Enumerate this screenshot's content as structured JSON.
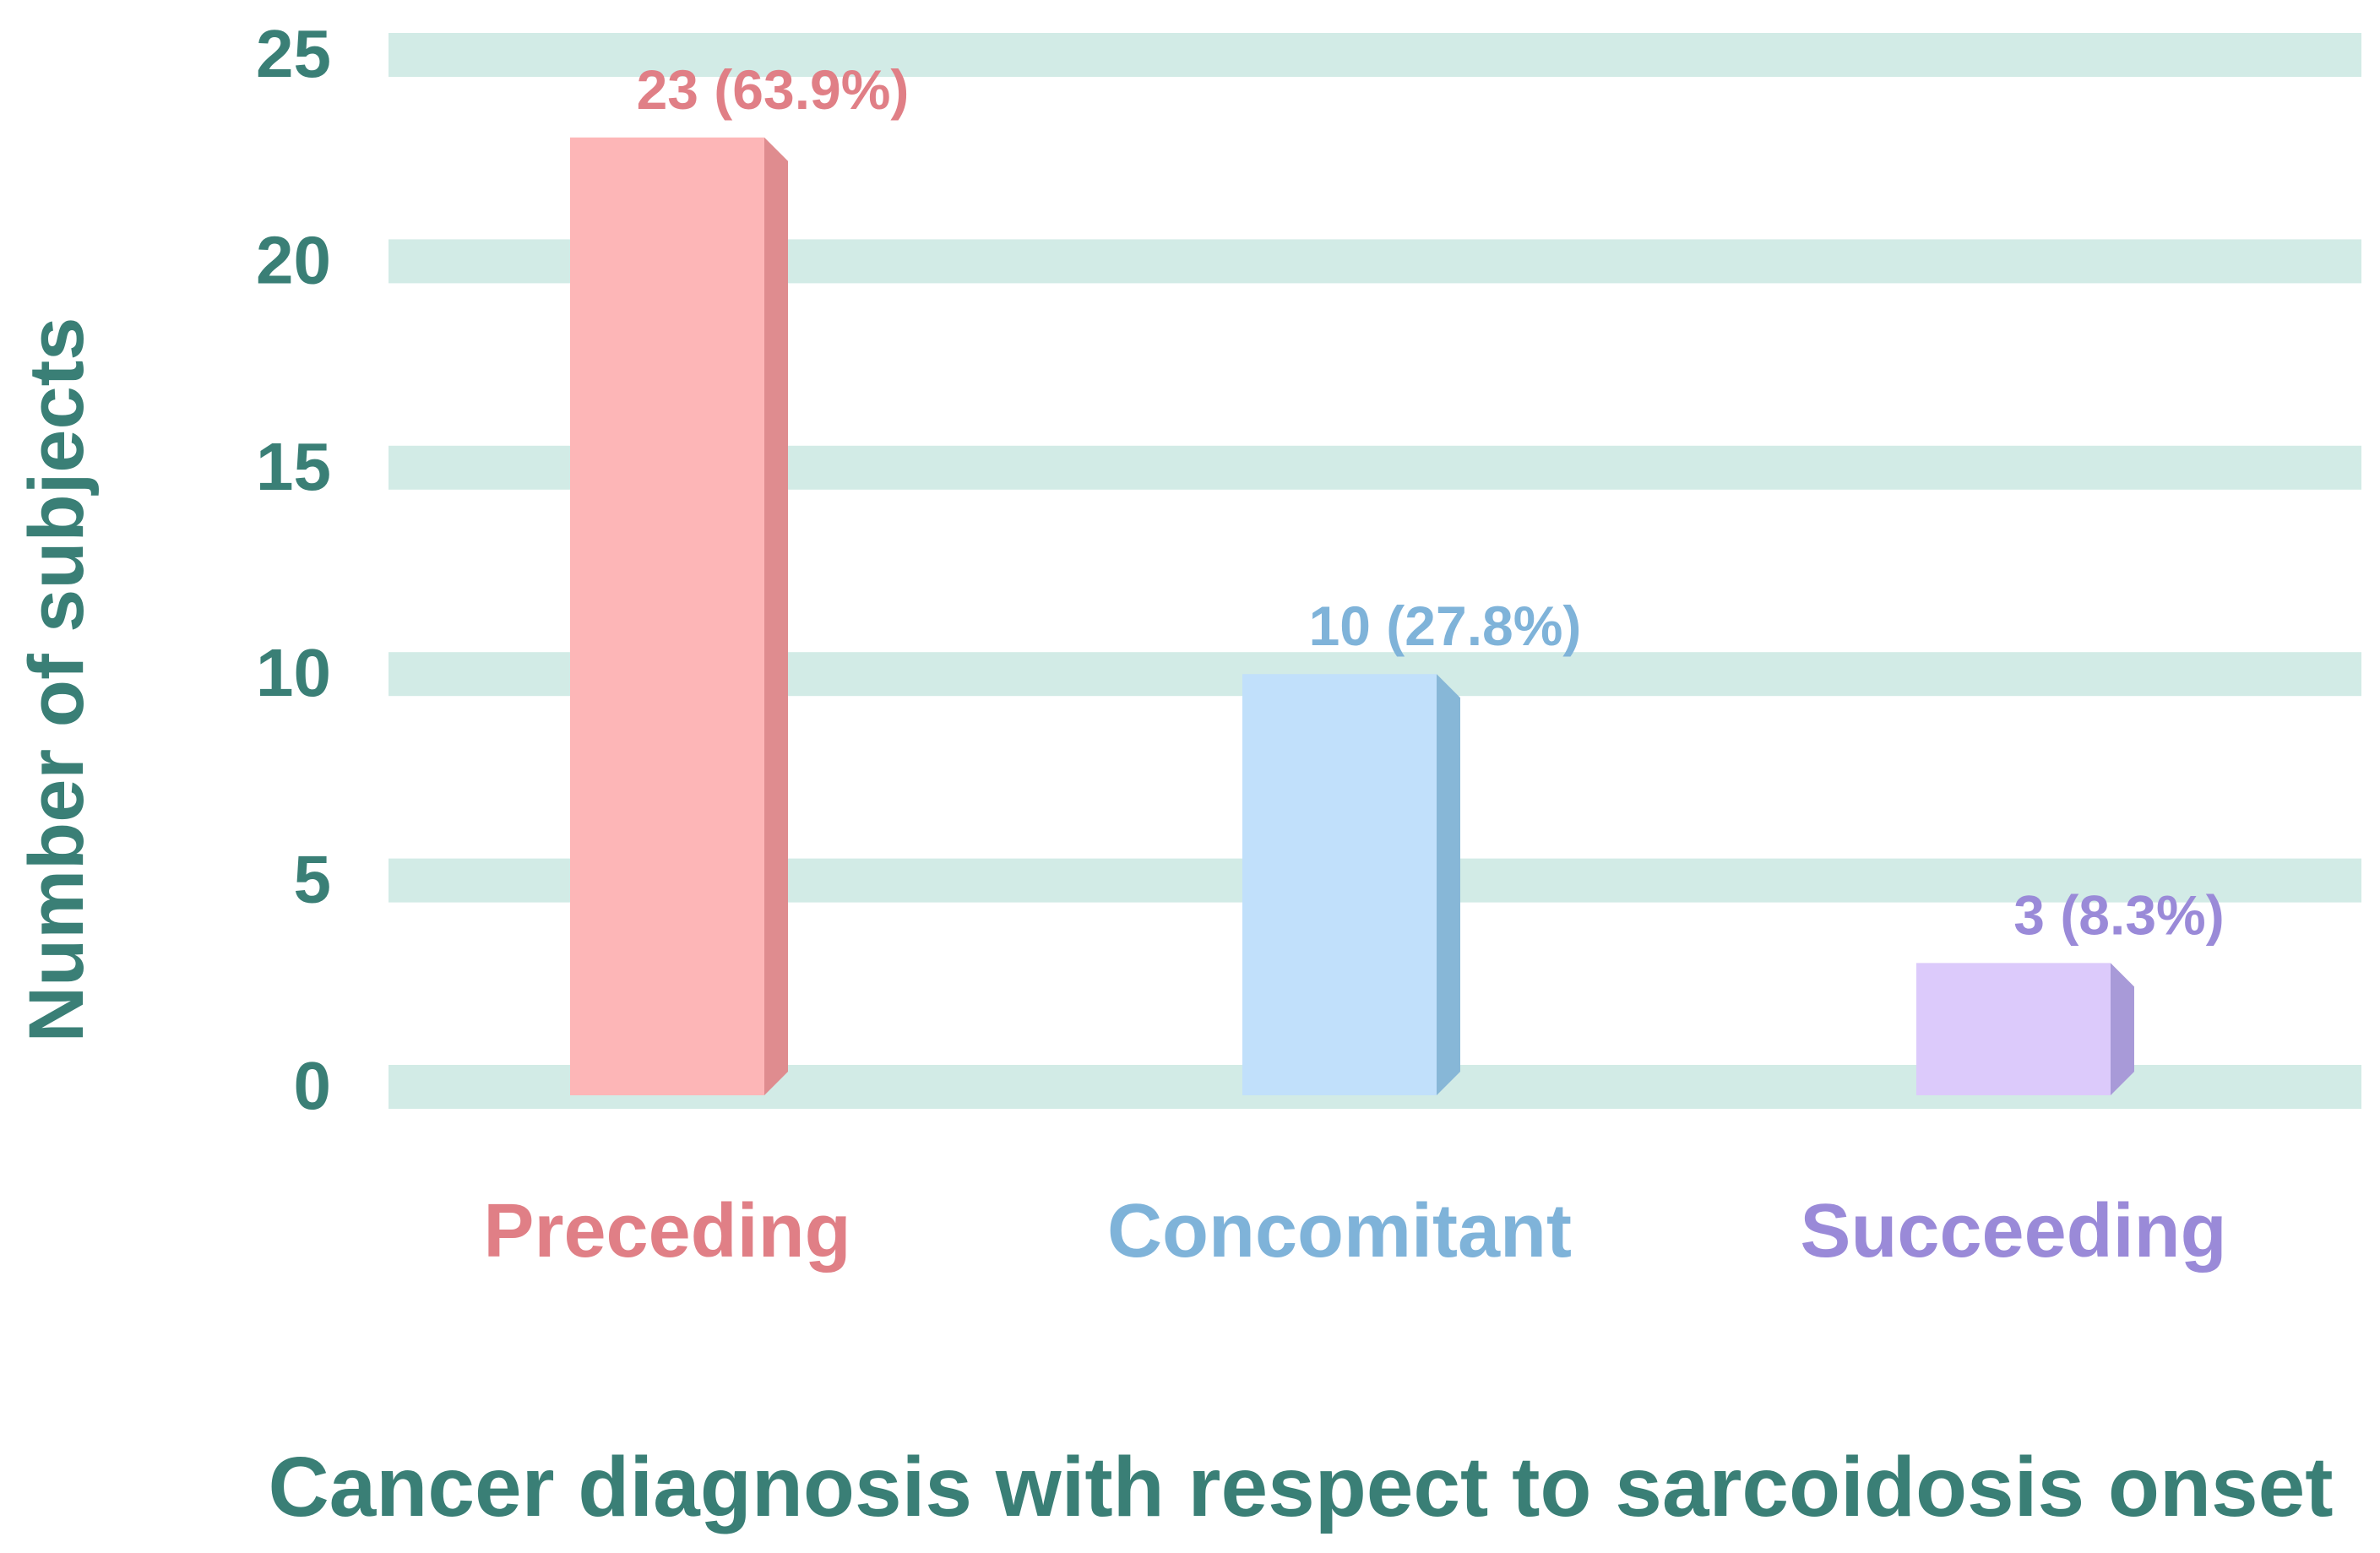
{
  "chart_data": {
    "type": "bar",
    "title": "",
    "xlabel": "Cancer diagnosis with respect to sarcoidosis onset",
    "ylabel": "Number of subjects",
    "ylim": [
      0,
      25
    ],
    "yticks": [
      0,
      5,
      10,
      15,
      20,
      25
    ],
    "grid": true,
    "categories": [
      "Preceding",
      "Concomitant",
      "Succeeding"
    ],
    "values": [
      23,
      10,
      3
    ],
    "data_labels": [
      "23 (63.9%)",
      "10 (27.8%)",
      "3 (8.3%)"
    ]
  },
  "colors": {
    "axis_text": "#3a7f76",
    "gridline": "#d2ebe6",
    "bars": [
      "#fdb6b7",
      "#c1e0fb",
      "#dccafb"
    ],
    "bar_sides": [
      "#df8c8f",
      "#87b7d7",
      "#a89ad8"
    ],
    "labels": [
      "#e07f86",
      "#7fb3d9",
      "#9a8ad8"
    ]
  }
}
